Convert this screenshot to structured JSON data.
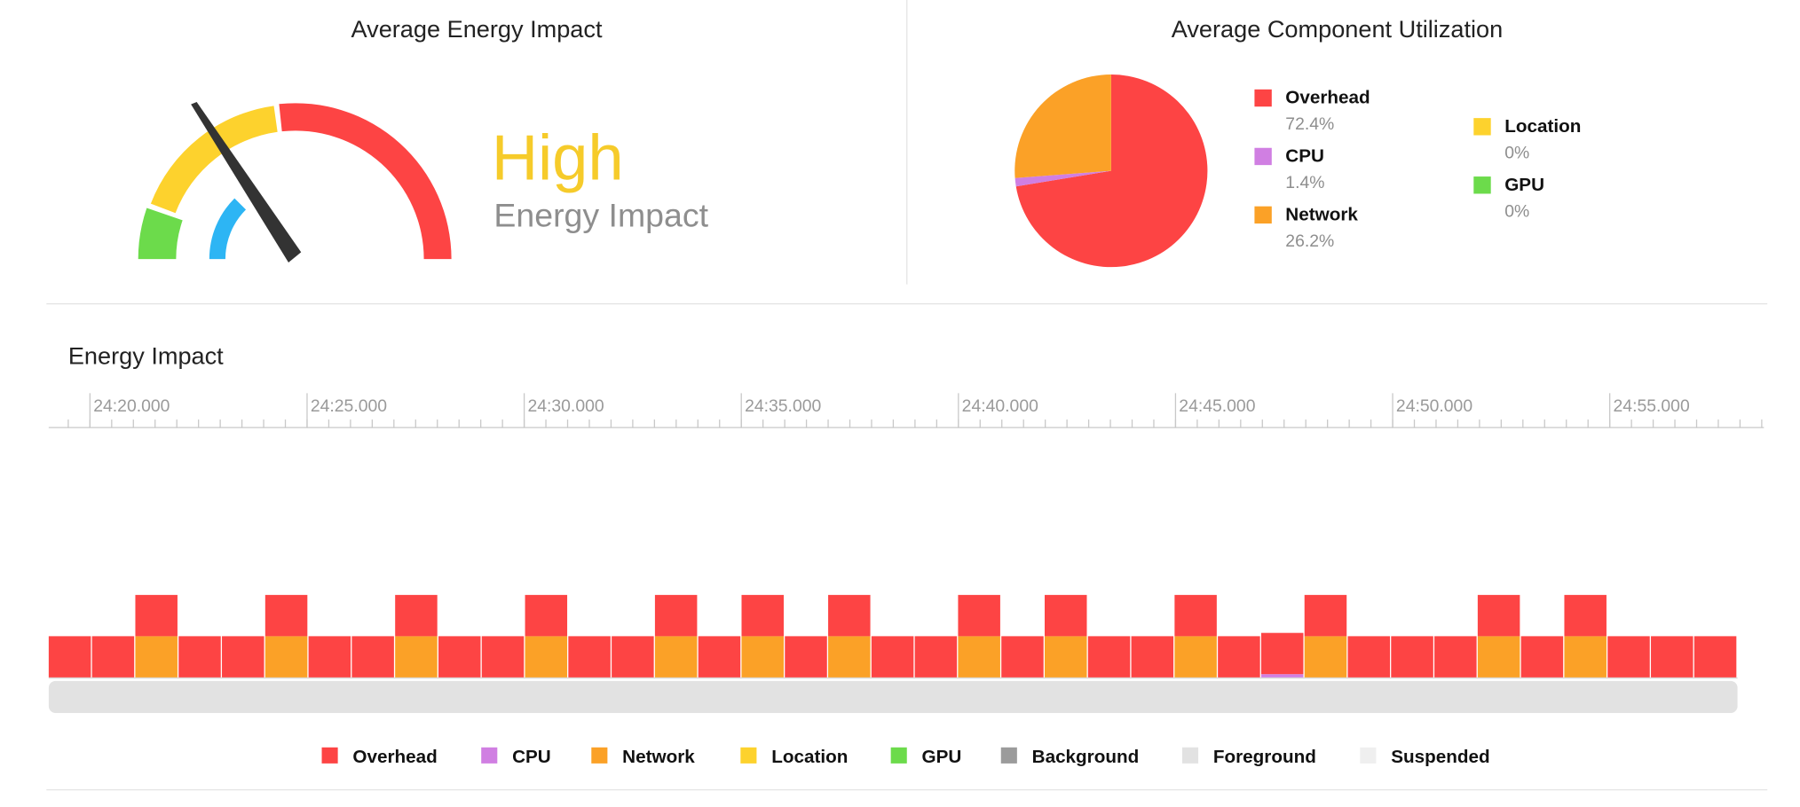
{
  "gauge": {
    "title": "Average Energy Impact",
    "level": "High",
    "caption": "Energy Impact"
  },
  "chart_data": [
    {
      "type": "pie",
      "title": "Average Component Utilization",
      "categories": [
        "Overhead",
        "CPU",
        "Network",
        "Location",
        "GPU"
      ],
      "values": [
        72.4,
        1.4,
        26.2,
        0,
        0
      ],
      "value_labels": [
        "72.4%",
        "1.4%",
        "26.2%",
        "0%",
        "0%"
      ],
      "colors": [
        "#fd4444",
        "#d07fe2",
        "#fba127",
        "#fdd22d",
        "#6cdb4b"
      ]
    },
    {
      "type": "bar",
      "stacked": true,
      "title": "Energy Impact",
      "xlim": [
        19.05,
        58.55
      ],
      "xticks": [
        {
          "value": 20,
          "label": "24:20.000"
        },
        {
          "value": 25,
          "label": "24:25.000"
        },
        {
          "value": 30,
          "label": "24:30.000"
        },
        {
          "value": 35,
          "label": "24:35.000"
        },
        {
          "value": 40,
          "label": "24:40.000"
        },
        {
          "value": 45,
          "label": "24:45.000"
        },
        {
          "value": 50,
          "label": "24:50.000"
        },
        {
          "value": 55,
          "label": "24:55.000"
        }
      ],
      "ylim": [
        0,
        6
      ],
      "series": [
        {
          "name": "Overhead",
          "color": "#fd4444",
          "values": [
            1,
            1,
            1,
            1,
            1,
            1,
            1,
            1,
            1,
            1,
            1,
            1,
            1,
            1,
            1,
            1,
            1,
            1,
            1,
            1,
            1,
            1,
            1,
            1,
            1,
            1,
            1,
            1,
            1,
            1,
            1,
            1,
            1,
            1,
            1,
            1,
            1,
            1,
            1
          ]
        },
        {
          "name": "CPU",
          "color": "#d07fe2",
          "values": [
            0,
            0,
            0,
            0,
            0,
            0,
            0,
            0,
            0,
            0,
            0,
            0,
            0,
            0,
            0,
            0,
            0,
            0,
            0,
            0,
            0,
            0,
            0,
            0,
            0,
            0,
            0,
            0,
            0.08,
            0,
            0,
            0,
            0,
            0,
            0,
            0,
            0,
            0,
            0
          ]
        },
        {
          "name": "Network",
          "color": "#fba127",
          "values": [
            0,
            0,
            1,
            0,
            0,
            1,
            0,
            0,
            1,
            0,
            0,
            1,
            0,
            0,
            1,
            0,
            1,
            0,
            1,
            0,
            0,
            1,
            0,
            1,
            0,
            0,
            1,
            0,
            0,
            1,
            0,
            0,
            0,
            1,
            0,
            1,
            0,
            0,
            0
          ]
        },
        {
          "name": "Location",
          "color": "#fdd22d",
          "values": [
            0,
            0,
            0,
            0,
            0,
            0,
            0,
            0,
            0,
            0,
            0,
            0,
            0,
            0,
            0,
            0,
            0,
            0,
            0,
            0,
            0,
            0,
            0,
            0,
            0,
            0,
            0,
            0,
            0,
            0,
            0,
            0,
            0,
            0,
            0,
            0,
            0,
            0,
            0
          ]
        },
        {
          "name": "GPU",
          "color": "#6cdb4b",
          "values": [
            0,
            0,
            0,
            0,
            0,
            0,
            0,
            0,
            0,
            0,
            0,
            0,
            0,
            0,
            0,
            0,
            0,
            0,
            0,
            0,
            0,
            0,
            0,
            0,
            0,
            0,
            0,
            0,
            0,
            0,
            0,
            0,
            0,
            0,
            0,
            0,
            0,
            0,
            0
          ]
        }
      ],
      "states": [
        {
          "name": "Background",
          "color": "#9b9b9b"
        },
        {
          "name": "Foreground",
          "color": "#e2e2e2"
        },
        {
          "name": "Suspended",
          "color": "#efefef"
        }
      ]
    }
  ]
}
